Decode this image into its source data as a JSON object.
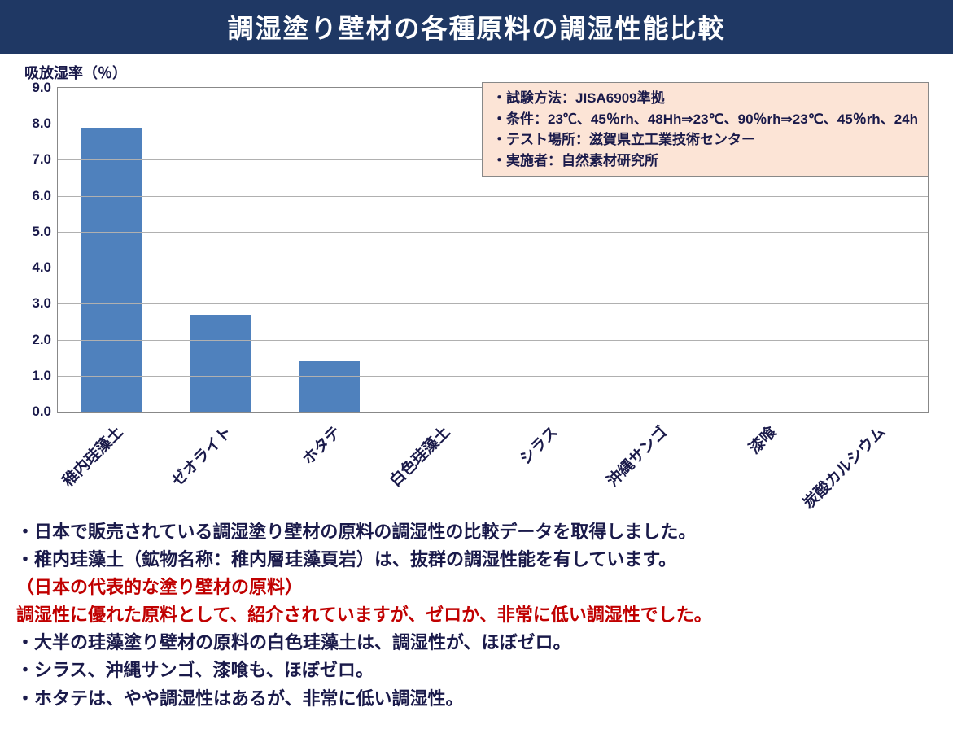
{
  "title": "調湿塗り壁材の各種原料の調湿性能比較",
  "chart": {
    "type": "bar",
    "y_axis_label": "吸放湿率（％）",
    "y_max": 9.0,
    "y_tick_step": 1.0,
    "y_ticks": [
      "0.0",
      "1.0",
      "2.0",
      "3.0",
      "4.0",
      "5.0",
      "6.0",
      "7.0",
      "8.0",
      "9.0"
    ],
    "categories": [
      "稚内珪藻土",
      "ゼオライト",
      "ホタテ",
      "白色珪藻土",
      "シラス",
      "沖縄サンゴ",
      "漆喰",
      "炭酸カルシウム"
    ],
    "values": [
      7.9,
      2.7,
      1.4,
      0.0,
      0.0,
      0.0,
      0.0,
      0.0
    ],
    "bar_color": "#4f81bd",
    "plot_bg": "#ffffff",
    "grid_color": "#b0b0b0",
    "axis_color": "#888888",
    "tick_font_size": 17,
    "xlabel_font_size": 19,
    "xlabel_rotation_deg": -45,
    "bar_width_ratio": 0.56
  },
  "info_box": {
    "bg_color": "#fce4d6",
    "border_color": "#888888",
    "lines": [
      "・試験方法：JISA6909準拠",
      "・条件：23℃、45％rh、48Hh⇒23℃、90％rh⇒23℃、45％rh、24h",
      "・テスト場所：滋賀県立工業技術センター",
      "・実施者：自然素材研究所"
    ]
  },
  "notes": [
    {
      "color": "blue",
      "text": "・日本で販売されている調湿塗り壁材の原料の調湿性の比較データを取得しました。"
    },
    {
      "color": "blue",
      "text": "・稚内珪藻土（鉱物名称：稚内層珪藻頁岩）は、抜群の調湿性能を有しています。"
    },
    {
      "color": "red",
      "text": "（日本の代表的な塗り壁材の原料）"
    },
    {
      "color": "red",
      "text": "調湿性に優れた原料として、紹介されていますが、ゼロか、非常に低い調湿性でした。"
    },
    {
      "color": "blue",
      "text": "・大半の珪藻塗り壁材の原料の白色珪藻土は、調湿性が、ほぼゼロ。"
    },
    {
      "color": "blue",
      "text": "・シラス、沖縄サンゴ、漆喰も、ほぼゼロ。"
    },
    {
      "color": "blue",
      "text": "・ホタテは、やや調湿性はあるが、非常に低い調湿性。"
    }
  ],
  "colors": {
    "title_bg": "#1f3864",
    "title_fg": "#ffffff",
    "text_blue": "#1a1a4a",
    "text_red": "#c00000"
  }
}
